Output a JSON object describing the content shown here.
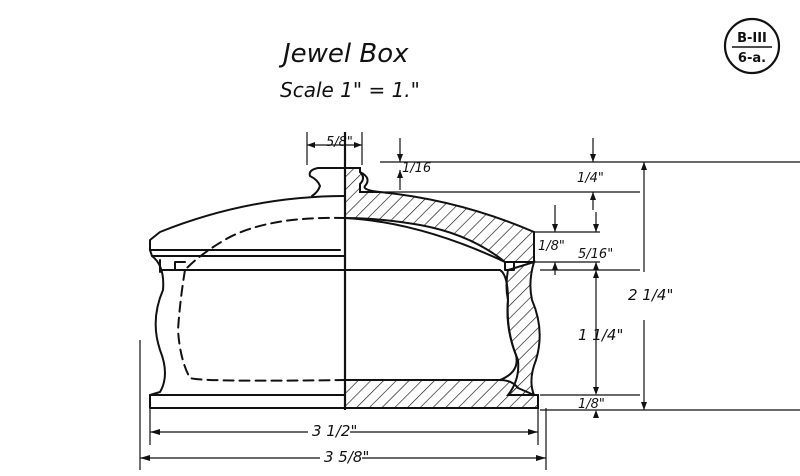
{
  "title": "Jewel Box",
  "scale": "Scale 1\" = 1.\"",
  "badge": {
    "top": "B-III",
    "bottom": "6-a."
  },
  "dimensions": {
    "knob_width": "5/8\"",
    "knob_height": "1/16",
    "lid_top": "1/4\"",
    "lid_rim": "1/8\"",
    "lid_lip": "5/16\"",
    "body_height": "1 1/4\"",
    "overall_height": "2 1/4\"",
    "base": "1/8\"",
    "inner_width": "3 1/2\"",
    "outer_width": "3 5/8\""
  }
}
